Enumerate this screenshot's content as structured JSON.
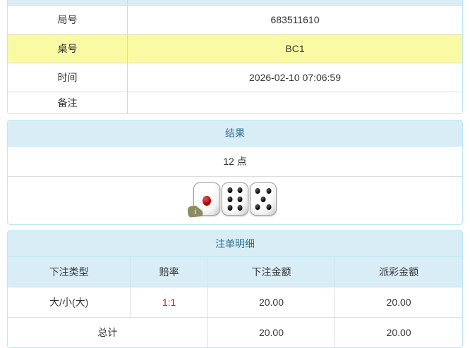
{
  "colors": {
    "panel_bg": "#d9edf7",
    "panel_border": "#bce8f1",
    "panel_title": "#31708f",
    "row_divider": "#dddddd",
    "highlight_row_bg": "#fafaa5",
    "odds_red": "#ff0000",
    "text": "#333333"
  },
  "info_table": {
    "rows": [
      {
        "label": "局号",
        "value": "683511610"
      },
      {
        "label": "桌号",
        "value": "BC1"
      },
      {
        "label": "时间",
        "value": "2026-02-10 07:06:59"
      },
      {
        "label": "备注",
        "value": ""
      }
    ]
  },
  "result_panel": {
    "title": "结果",
    "points": "12 点",
    "dice": [
      1,
      6,
      5
    ],
    "info_badge": "i"
  },
  "bets_panel": {
    "title": "注单明细",
    "columns": [
      "下注类型",
      "赔率",
      "下注金额",
      "派彩金额"
    ],
    "rows": [
      {
        "type": "大/小(大)",
        "odds": "1:1",
        "bet": "20.00",
        "payout": "20.00"
      }
    ],
    "total": {
      "label": "总计",
      "bet": "20.00",
      "payout": "20.00"
    }
  }
}
